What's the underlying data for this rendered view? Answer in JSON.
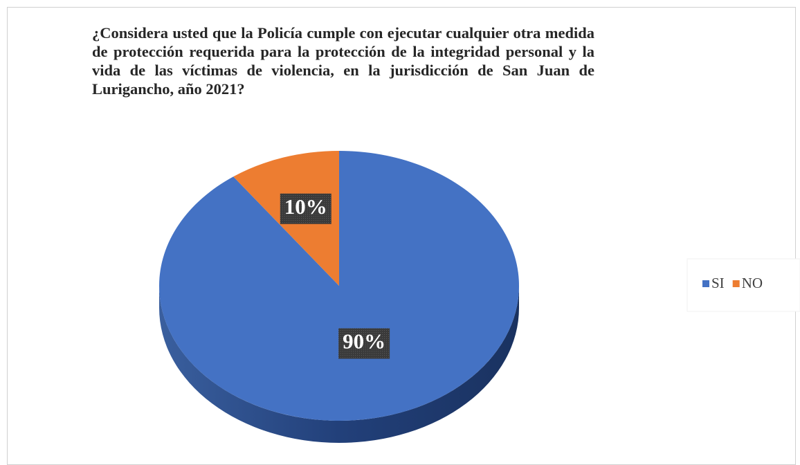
{
  "chart_data": {
    "type": "pie",
    "title": "¿Considera usted que la Policía cumple con ejecutar cualquier otra medida de protección requerida para la protección de la integridad personal y la vida de las víctimas de violencia, en la jurisdicción de San Juan de Lurigancho, año 2021?",
    "categories": [
      "SI",
      "NO"
    ],
    "values": [
      90,
      10
    ],
    "value_labels": [
      "90%",
      "10%"
    ],
    "colors": [
      "#4472c4",
      "#ed7d31"
    ],
    "legend": "right"
  }
}
